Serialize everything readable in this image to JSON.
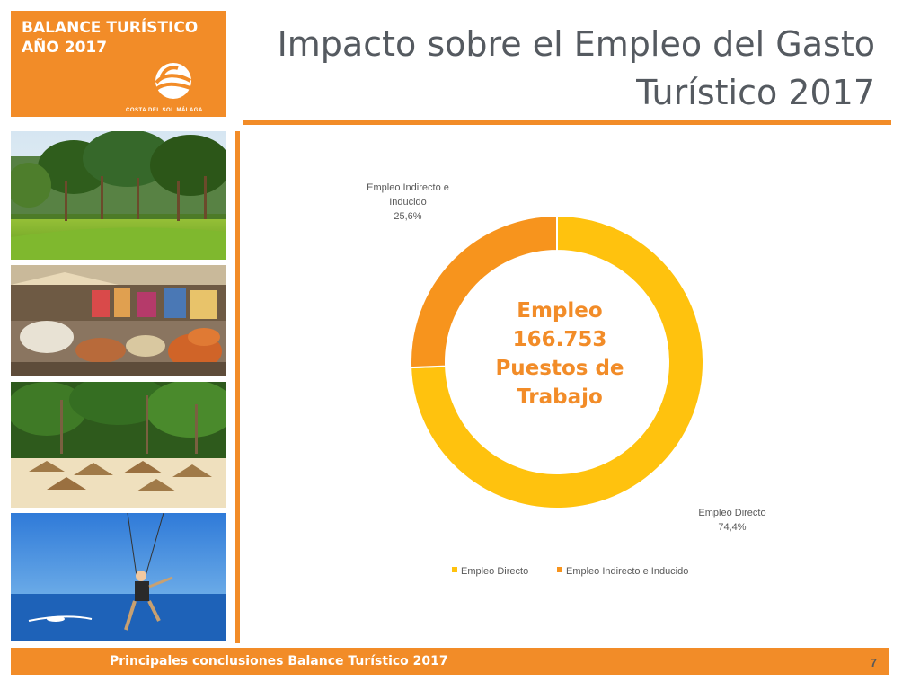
{
  "brand": {
    "title_line1": "BALANCE  TURÍSTICO",
    "title_line2": "AÑO 2017",
    "logo_text": "COSTA DEL SOL MÁLAGA"
  },
  "header": {
    "title_line1": "Impacto sobre el Empleo del Gasto",
    "title_line2": "Turístico 2017"
  },
  "photos": [
    {
      "name": "golf-forest"
    },
    {
      "name": "market-stalls"
    },
    {
      "name": "beach-palms"
    },
    {
      "name": "paraglider-sea"
    }
  ],
  "chart_data": {
    "type": "pie",
    "categories": [
      "Empleo Directo",
      "Empleo Indirecto e Inducido"
    ],
    "values": [
      74.4,
      25.6
    ],
    "value_labels": [
      "74,4%",
      "25,6%"
    ],
    "colors": [
      "#ffc20e",
      "#f7941d"
    ],
    "center_label": [
      "Empleo",
      "166.753",
      "Puestos de",
      "Trabajo"
    ],
    "label_lines": [
      [
        "Empleo Directo",
        "74,4%"
      ],
      [
        "Empleo Indirecto e",
        "Inducido",
        "25,6%"
      ]
    ],
    "legend": [
      "Empleo Directo",
      "Empleo Indirecto e Inducido"
    ],
    "legend_position": "bottom"
  },
  "footer": {
    "text": "Principales conclusiones Balance Turístico 2017",
    "page_number": "7"
  }
}
